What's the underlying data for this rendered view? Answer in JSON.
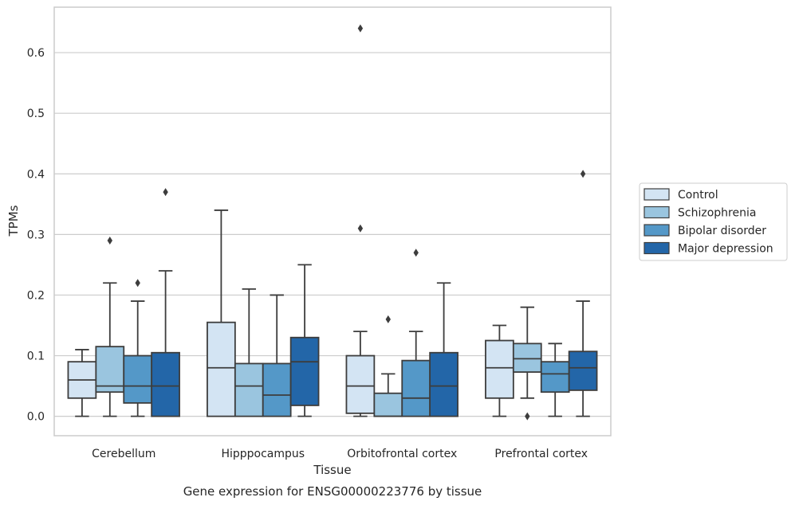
{
  "chart_data": {
    "type": "box",
    "title": "",
    "caption": "Gene expression for ENSG00000223776 by tissue",
    "xlabel": "Tissue",
    "ylabel": "TPMs",
    "ylim": [
      -0.032,
      0.675
    ],
    "yticks": [
      0.0,
      0.1,
      0.2,
      0.3,
      0.4,
      0.5,
      0.6
    ],
    "ytick_labels": [
      "0.0",
      "0.1",
      "0.2",
      "0.3",
      "0.4",
      "0.5",
      "0.6"
    ],
    "grid": "horizontal",
    "legend_position": "right",
    "categories": [
      "Cerebellum",
      "Hipppocampus",
      "Orbitofrontal cortex",
      "Prefrontal cortex"
    ],
    "series": [
      {
        "name": "Control",
        "color": "#d3e4f3",
        "boxes": [
          {
            "whislo": 0.0,
            "q1": 0.03,
            "med": 0.06,
            "q3": 0.09,
            "whishi": 0.11,
            "fliers": []
          },
          {
            "whislo": 0.0,
            "q1": 0.0,
            "med": 0.08,
            "q3": 0.155,
            "whishi": 0.34,
            "fliers": []
          },
          {
            "whislo": 0.0,
            "q1": 0.005,
            "med": 0.05,
            "q3": 0.1,
            "whishi": 0.14,
            "fliers": [
              0.31,
              0.64
            ]
          },
          {
            "whislo": 0.0,
            "q1": 0.03,
            "med": 0.08,
            "q3": 0.125,
            "whishi": 0.15,
            "fliers": []
          }
        ]
      },
      {
        "name": "Schizophrenia",
        "color": "#9ac5df",
        "boxes": [
          {
            "whislo": 0.0,
            "q1": 0.04,
            "med": 0.05,
            "q3": 0.115,
            "whishi": 0.22,
            "fliers": [
              0.29
            ]
          },
          {
            "whislo": 0.0,
            "q1": 0.0,
            "med": 0.05,
            "q3": 0.087,
            "whishi": 0.21,
            "fliers": []
          },
          {
            "whislo": 0.0,
            "q1": 0.0,
            "med": 0.0,
            "q3": 0.038,
            "whishi": 0.07,
            "fliers": [
              0.16
            ]
          },
          {
            "whislo": 0.03,
            "q1": 0.073,
            "med": 0.095,
            "q3": 0.12,
            "whishi": 0.18,
            "fliers": [
              0.0
            ]
          }
        ]
      },
      {
        "name": "Bipolar disorder",
        "color": "#5498c8",
        "boxes": [
          {
            "whislo": 0.0,
            "q1": 0.022,
            "med": 0.05,
            "q3": 0.1,
            "whishi": 0.19,
            "fliers": [
              0.22
            ]
          },
          {
            "whislo": 0.0,
            "q1": 0.0,
            "med": 0.035,
            "q3": 0.087,
            "whishi": 0.2,
            "fliers": []
          },
          {
            "whislo": 0.0,
            "q1": 0.0,
            "med": 0.03,
            "q3": 0.092,
            "whishi": 0.14,
            "fliers": [
              0.27
            ]
          },
          {
            "whislo": 0.0,
            "q1": 0.04,
            "med": 0.07,
            "q3": 0.09,
            "whishi": 0.12,
            "fliers": []
          }
        ]
      },
      {
        "name": "Major depression",
        "color": "#2366a8",
        "boxes": [
          {
            "whislo": 0.0,
            "q1": 0.0,
            "med": 0.05,
            "q3": 0.105,
            "whishi": 0.24,
            "fliers": [
              0.37
            ]
          },
          {
            "whislo": 0.0,
            "q1": 0.018,
            "med": 0.09,
            "q3": 0.13,
            "whishi": 0.25,
            "fliers": []
          },
          {
            "whislo": 0.0,
            "q1": 0.0,
            "med": 0.05,
            "q3": 0.105,
            "whishi": 0.22,
            "fliers": []
          },
          {
            "whislo": 0.0,
            "q1": 0.043,
            "med": 0.08,
            "q3": 0.107,
            "whishi": 0.19,
            "fliers": [
              0.4
            ]
          }
        ]
      }
    ],
    "colors": {
      "edge": "#3d3d3d",
      "grid": "#cccccc",
      "frame": "#cccccc",
      "text": "#262626"
    }
  }
}
